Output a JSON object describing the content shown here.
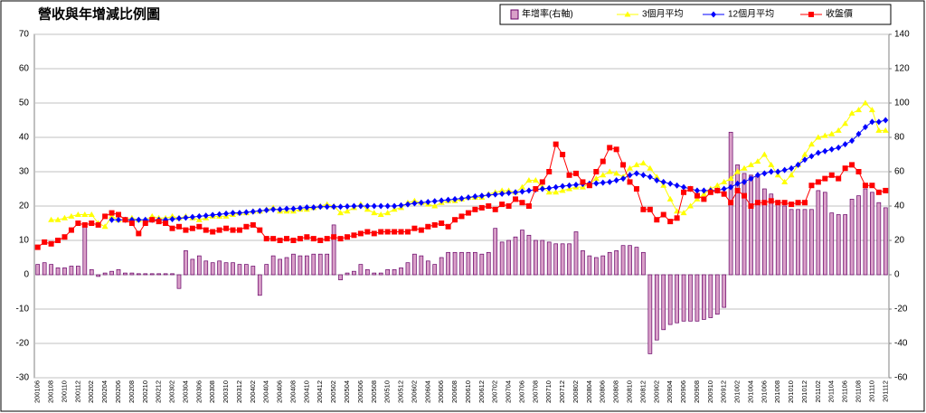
{
  "chart_data": {
    "type": "combo",
    "title": "營收與年增減比例圖",
    "categories": [
      "200106",
      null,
      "200108",
      null,
      "200110",
      null,
      "200112",
      null,
      "200202",
      null,
      "200204",
      null,
      "200206",
      null,
      "200208",
      null,
      "200210",
      null,
      "200212",
      null,
      "200302",
      null,
      "200304",
      null,
      "200306",
      null,
      "200308",
      null,
      "200310",
      null,
      "200312",
      null,
      "200402",
      null,
      "200404",
      null,
      "200406",
      null,
      "200408",
      null,
      "200410",
      null,
      "200412",
      null,
      "200502",
      null,
      "200504",
      null,
      "200506",
      null,
      "200508",
      null,
      "200510",
      null,
      "200512",
      null,
      "200602",
      null,
      "200604",
      null,
      "200606",
      null,
      "200608",
      null,
      "200610",
      null,
      "200612",
      null,
      "200702",
      null,
      "200704",
      null,
      "200706",
      null,
      "200708",
      null,
      "200710",
      null,
      "200712",
      null,
      "200802",
      null,
      "200804",
      null,
      "200806",
      null,
      "200808",
      null,
      "200810",
      null,
      "200812",
      null,
      "200902",
      null,
      "200904",
      null,
      "200906",
      null,
      "200908",
      null,
      "200910",
      null,
      "200912",
      null,
      "201002",
      null,
      "201004",
      null,
      "201006",
      null,
      "201008",
      null,
      "201010",
      null,
      "201012",
      null,
      "201102",
      null,
      "201104",
      null,
      "201106",
      null,
      "201108",
      null,
      "201110",
      null,
      "201112"
    ],
    "series": [
      {
        "name": "年增率(右軸)",
        "type": "bar",
        "axis": "y2",
        "color": "#d9a0c8",
        "edge": "#660066",
        "values": [
          6,
          7,
          6,
          4,
          4,
          5,
          5,
          29,
          3,
          -1,
          1,
          2,
          3,
          1,
          1,
          0.6,
          0.6,
          0.6,
          0.6,
          0.6,
          0.6,
          -8,
          14,
          9,
          11,
          8,
          7,
          8,
          7,
          7,
          6,
          6,
          5,
          -12,
          6,
          11,
          9,
          10,
          12,
          11,
          11,
          12,
          12,
          12,
          29,
          -3,
          1,
          2,
          6,
          3,
          1,
          1,
          3,
          3,
          4,
          7,
          12,
          11,
          8,
          6,
          10,
          13,
          13,
          13,
          13,
          13,
          12,
          13,
          27,
          19,
          20,
          22,
          26,
          23,
          20,
          20,
          19,
          18,
          18,
          18,
          25,
          14,
          11,
          10,
          11,
          13,
          14,
          17,
          17,
          16,
          13,
          -46,
          -38,
          -32,
          -29,
          -28,
          -27,
          -27,
          -27,
          -26,
          -25,
          -23,
          -19,
          83,
          64,
          59,
          58,
          58,
          50,
          47,
          41,
          40,
          38,
          38,
          38,
          38,
          49,
          48,
          36,
          35,
          35,
          44,
          46,
          50,
          48,
          42,
          39
        ]
      },
      {
        "name": "3個月平均",
        "type": "line",
        "marker": "triangle",
        "color": "#ffff00",
        "values": [
          null,
          null,
          16,
          16,
          16.5,
          17,
          17.5,
          17.5,
          17.5,
          15,
          14,
          17,
          16,
          16,
          16.5,
          16,
          16,
          17,
          16.5,
          16.5,
          17,
          16.5,
          17,
          16.5,
          16,
          16.5,
          17,
          17,
          17,
          17.5,
          18,
          18,
          18.5,
          18.5,
          19,
          19.5,
          18.5,
          18.5,
          18.5,
          19,
          19,
          19.5,
          20,
          20.5,
          20,
          18,
          18.5,
          19.5,
          20.5,
          19,
          18,
          17.5,
          18,
          19,
          19.5,
          21,
          21.5,
          21,
          20.5,
          20,
          21,
          21.5,
          21.5,
          22,
          22.5,
          22.5,
          22.5,
          23.5,
          24,
          24.5,
          24.5,
          24,
          25.5,
          27.5,
          27.5,
          25.5,
          24,
          24,
          24.5,
          25,
          25.5,
          25.5,
          26.5,
          28,
          29,
          30,
          29.5,
          28.5,
          31,
          32,
          32.5,
          31,
          28.5,
          26,
          22,
          18.5,
          18,
          20,
          22,
          23.5,
          25,
          26,
          27,
          28,
          30,
          31,
          32,
          33,
          35,
          32,
          29,
          27,
          29,
          32,
          35,
          38,
          40,
          40.5,
          41,
          42,
          44,
          47,
          48,
          50,
          48,
          42,
          42
        ]
      },
      {
        "name": "12個月平均",
        "type": "line",
        "marker": "diamond",
        "color": "#0000ff",
        "values": [
          null,
          null,
          null,
          null,
          null,
          null,
          null,
          null,
          null,
          null,
          null,
          16,
          16,
          16,
          16,
          16,
          16,
          16,
          16,
          16,
          16.2,
          16.4,
          16.6,
          16.8,
          17,
          17.2,
          17.4,
          17.6,
          17.8,
          18,
          18,
          18.2,
          18.4,
          18.6,
          18.8,
          19,
          19,
          19.2,
          19.2,
          19.4,
          19.6,
          19.6,
          19.8,
          19.8,
          19.8,
          19.8,
          19.9,
          20,
          20,
          20,
          20,
          20,
          20,
          20,
          20.2,
          20.5,
          20.8,
          21,
          21.2,
          21.4,
          21.6,
          21.8,
          22,
          22.2,
          22.5,
          22.8,
          23,
          23.2,
          23.4,
          23.6,
          23.8,
          24,
          24.2,
          24.5,
          24.8,
          25,
          25.2,
          25.5,
          25.8,
          26,
          26.2,
          26.4,
          26.5,
          26.6,
          26.8,
          27,
          27.5,
          28,
          29,
          29.5,
          29,
          28.5,
          27.5,
          27,
          26.5,
          26,
          25.5,
          25,
          24.5,
          24.5,
          24.5,
          24.5,
          25,
          25.5,
          26.5,
          27,
          28,
          29,
          29.5,
          30,
          30,
          30.5,
          31,
          32,
          33.5,
          34.5,
          35.5,
          36,
          36.5,
          37,
          38,
          39,
          41,
          43,
          44.5,
          44.5,
          45
        ]
      },
      {
        "name": "收盤價",
        "type": "line",
        "marker": "square",
        "color": "#ff0000",
        "values": [
          8,
          9.5,
          9,
          10,
          11,
          13,
          15,
          14.5,
          15,
          14.5,
          17,
          18,
          17.5,
          16,
          15,
          12,
          15,
          16,
          15.5,
          15,
          13.5,
          14,
          13,
          13.5,
          14,
          13,
          12.5,
          13,
          13.5,
          13,
          13,
          14,
          14.5,
          13,
          10.5,
          10.5,
          10,
          10.5,
          10,
          10.5,
          11,
          10.5,
          10,
          10.5,
          11,
          10.5,
          11,
          11.5,
          12,
          12.5,
          12,
          12.5,
          12.5,
          12.5,
          12.5,
          12.5,
          13.5,
          13,
          14,
          14.5,
          15,
          14,
          16,
          17,
          18,
          19,
          19.5,
          20,
          19,
          20.5,
          20,
          22,
          21,
          20,
          25,
          27,
          30,
          38,
          35,
          29,
          29.5,
          27,
          26,
          30,
          33,
          37,
          36.5,
          32,
          27,
          25,
          19,
          19,
          16,
          17.5,
          15.5,
          16.5,
          24,
          25,
          23,
          22,
          24,
          24.5,
          23.5,
          21,
          24.5,
          23,
          20,
          21,
          21,
          21.5,
          21,
          21,
          20.5,
          21,
          21,
          26,
          27,
          28,
          29,
          28,
          31,
          32,
          30,
          26,
          26,
          24,
          24.5
        ]
      }
    ],
    "ylim": [
      -30,
      70
    ],
    "yticks": [
      -30,
      -20,
      -10,
      0,
      10,
      20,
      30,
      40,
      50,
      60,
      70
    ],
    "y2lim": [
      -60,
      140
    ],
    "y2ticks": [
      -60,
      -40,
      -20,
      0,
      20,
      40,
      60,
      80,
      100,
      120,
      140
    ],
    "grid": true,
    "legend": "top-right"
  }
}
